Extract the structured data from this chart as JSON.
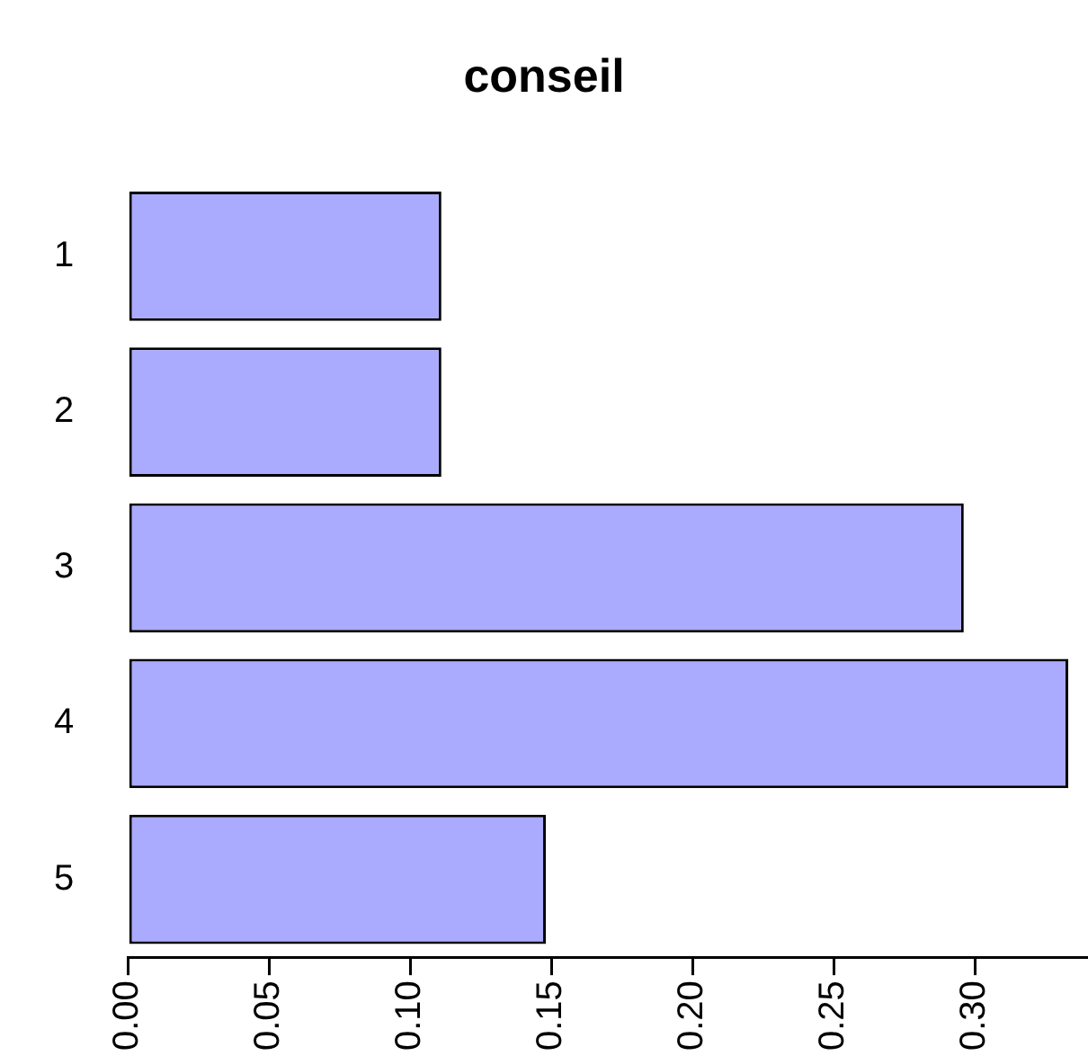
{
  "chart_data": {
    "type": "bar",
    "orientation": "horizontal",
    "title": "conseil",
    "categories": [
      "1",
      "2",
      "3",
      "4",
      "5"
    ],
    "values": [
      0.111,
      0.111,
      0.296,
      0.333,
      0.148
    ],
    "color": "#aaaaff",
    "xlim": [
      0,
      0.34
    ],
    "xticks": [
      {
        "value": 0,
        "label": "0.00"
      },
      {
        "value": 0.05,
        "label": "0.05"
      },
      {
        "value": 0.1,
        "label": "0.10"
      },
      {
        "value": 0.15,
        "label": "0.15"
      },
      {
        "value": 0.2,
        "label": "0.20"
      },
      {
        "value": 0.25,
        "label": "0.25"
      },
      {
        "value": 0.3,
        "label": "0.30"
      }
    ],
    "grid": false,
    "legend": false
  }
}
